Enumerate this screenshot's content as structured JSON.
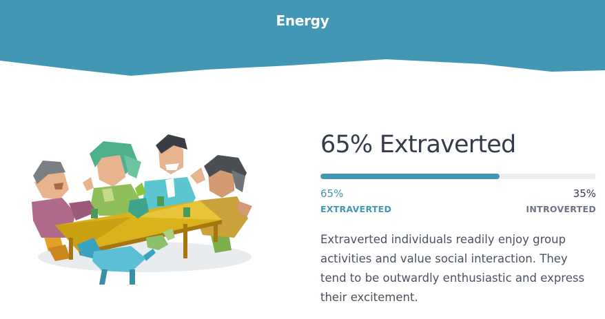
{
  "header": {
    "title": "Energy",
    "band_color": "#4298b4"
  },
  "result": {
    "headline": "65% Extraverted",
    "fill_percent": 65,
    "left_percent": "65%",
    "left_label": "EXTRAVERTED",
    "right_percent": "35%",
    "right_label": "INTROVERTED",
    "description": "Extraverted individuals readily enjoy group activities and value social interaction. They tend to be outwardly enthusiastic and express their excitement."
  },
  "colors": {
    "accent": "#4298b4",
    "text": "#343c4b",
    "muted": "#6b7482"
  },
  "illustration": {
    "icon": "people-at-table-illustration"
  }
}
